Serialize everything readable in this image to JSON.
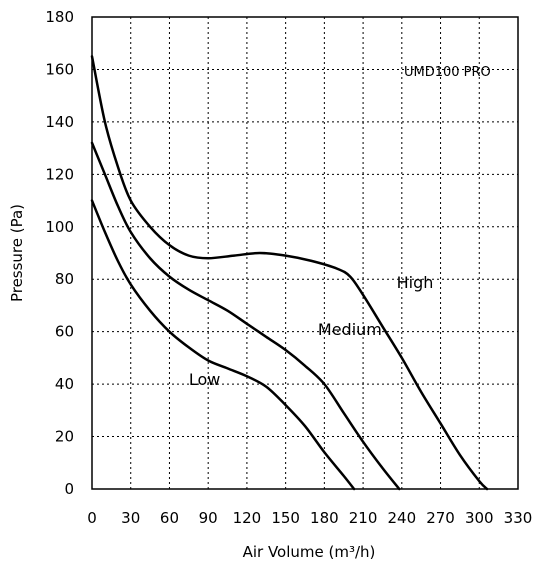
{
  "chart_data": {
    "type": "line",
    "model_label": "UMD100 PRO",
    "xlabel": "Air Volume (m³/h)",
    "ylabel": "Pressure (Pa)",
    "xlim": [
      0,
      330
    ],
    "ylim": [
      0,
      180
    ],
    "xticks": [
      0,
      30,
      60,
      90,
      120,
      150,
      180,
      210,
      240,
      270,
      300,
      330
    ],
    "yticks": [
      0,
      20,
      40,
      60,
      80,
      100,
      120,
      140,
      160,
      180
    ],
    "grid": true,
    "grid_style": "dotted",
    "series": [
      {
        "name": "High",
        "points": [
          [
            0,
            165
          ],
          [
            10,
            140
          ],
          [
            20,
            123
          ],
          [
            30,
            110
          ],
          [
            45,
            100
          ],
          [
            60,
            93
          ],
          [
            75,
            89
          ],
          [
            90,
            88
          ],
          [
            110,
            89
          ],
          [
            130,
            90
          ],
          [
            150,
            89
          ],
          [
            170,
            87
          ],
          [
            190,
            84
          ],
          [
            200,
            81
          ],
          [
            210,
            74
          ],
          [
            225,
            62
          ],
          [
            240,
            50
          ],
          [
            255,
            37
          ],
          [
            270,
            25
          ],
          [
            285,
            13
          ],
          [
            300,
            3
          ],
          [
            306,
            0
          ]
        ]
      },
      {
        "name": "Medium",
        "points": [
          [
            0,
            132
          ],
          [
            10,
            120
          ],
          [
            20,
            108
          ],
          [
            30,
            98
          ],
          [
            45,
            88
          ],
          [
            60,
            81
          ],
          [
            75,
            76
          ],
          [
            90,
            72
          ],
          [
            105,
            68
          ],
          [
            120,
            63
          ],
          [
            135,
            58
          ],
          [
            150,
            53
          ],
          [
            165,
            47
          ],
          [
            180,
            40
          ],
          [
            195,
            29
          ],
          [
            210,
            18
          ],
          [
            225,
            8
          ],
          [
            238,
            0
          ]
        ]
      },
      {
        "name": "Low",
        "points": [
          [
            0,
            110
          ],
          [
            10,
            98
          ],
          [
            20,
            87
          ],
          [
            30,
            78
          ],
          [
            45,
            68
          ],
          [
            60,
            60
          ],
          [
            75,
            54
          ],
          [
            90,
            49
          ],
          [
            105,
            46
          ],
          [
            120,
            43
          ],
          [
            135,
            39
          ],
          [
            150,
            32
          ],
          [
            165,
            24
          ],
          [
            180,
            14
          ],
          [
            195,
            5
          ],
          [
            203,
            0
          ]
        ]
      }
    ],
    "annotations": [
      {
        "text": "High",
        "x": 236,
        "y": 79
      },
      {
        "text": "Medium",
        "x": 175,
        "y": 61
      },
      {
        "text": "Low",
        "x": 75,
        "y": 42
      }
    ]
  }
}
